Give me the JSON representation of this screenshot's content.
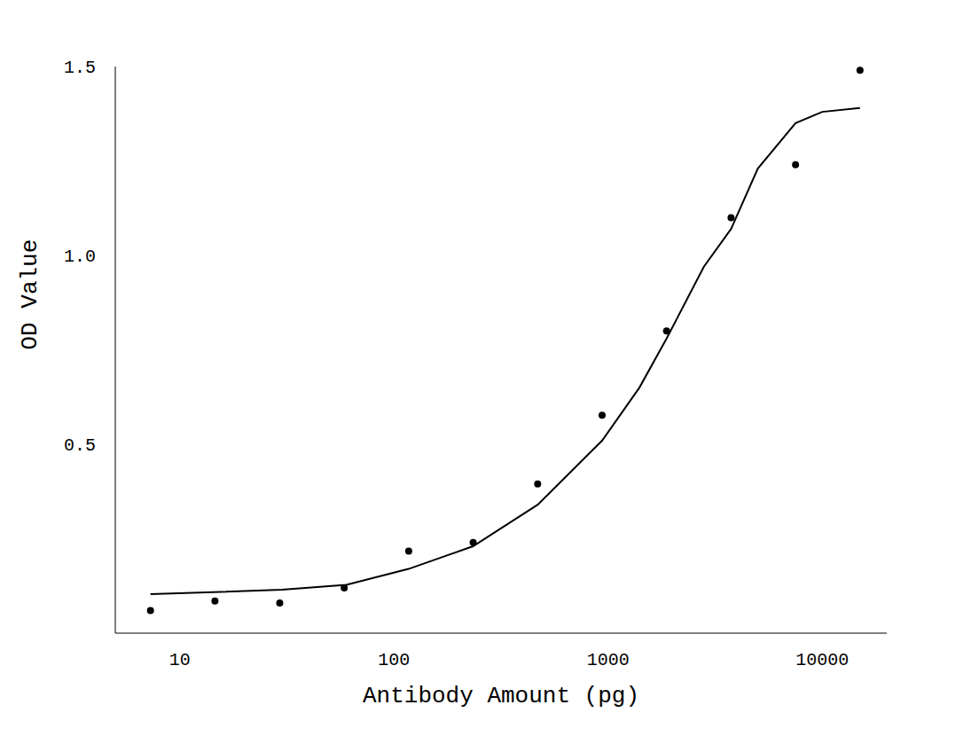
{
  "chart_data": {
    "type": "scatter",
    "x_label": "Antibody Amount (pg)",
    "y_label": "OD Value",
    "log": "x",
    "grid": false,
    "xlim": [
      5,
      20000
    ],
    "xticks": [
      10,
      100,
      1000,
      10000
    ],
    "ylim": [
      0,
      1.5
    ],
    "yticks": [
      0.5,
      {
        "value": 1,
        "label": "1.0"
      },
      1.5
    ],
    "series": [
      {
        "type": "scatter",
        "marker": "circle",
        "color": "#000000",
        "x": [
          7.3,
          14.6,
          29.3,
          58.6,
          117.2,
          234.4,
          468.8,
          937.5,
          1875,
          3750,
          7500,
          15000
        ],
        "values": [
          0.06,
          0.085,
          0.08,
          0.12,
          0.217,
          0.24,
          0.395,
          0.577,
          0.8,
          1.1,
          1.24,
          1.49
        ]
      },
      {
        "type": "line",
        "line_style": "solid",
        "color": "#000000",
        "x": [
          7.3,
          30,
          60,
          117,
          234,
          469,
          938,
          1400,
          1875,
          2800,
          3750,
          5000,
          7500,
          10000,
          15000
        ],
        "values": [
          0.103,
          0.115,
          0.128,
          0.17,
          0.23,
          0.34,
          0.51,
          0.65,
          0.78,
          0.97,
          1.07,
          1.23,
          1.35,
          1.38,
          1.39
        ]
      }
    ]
  }
}
